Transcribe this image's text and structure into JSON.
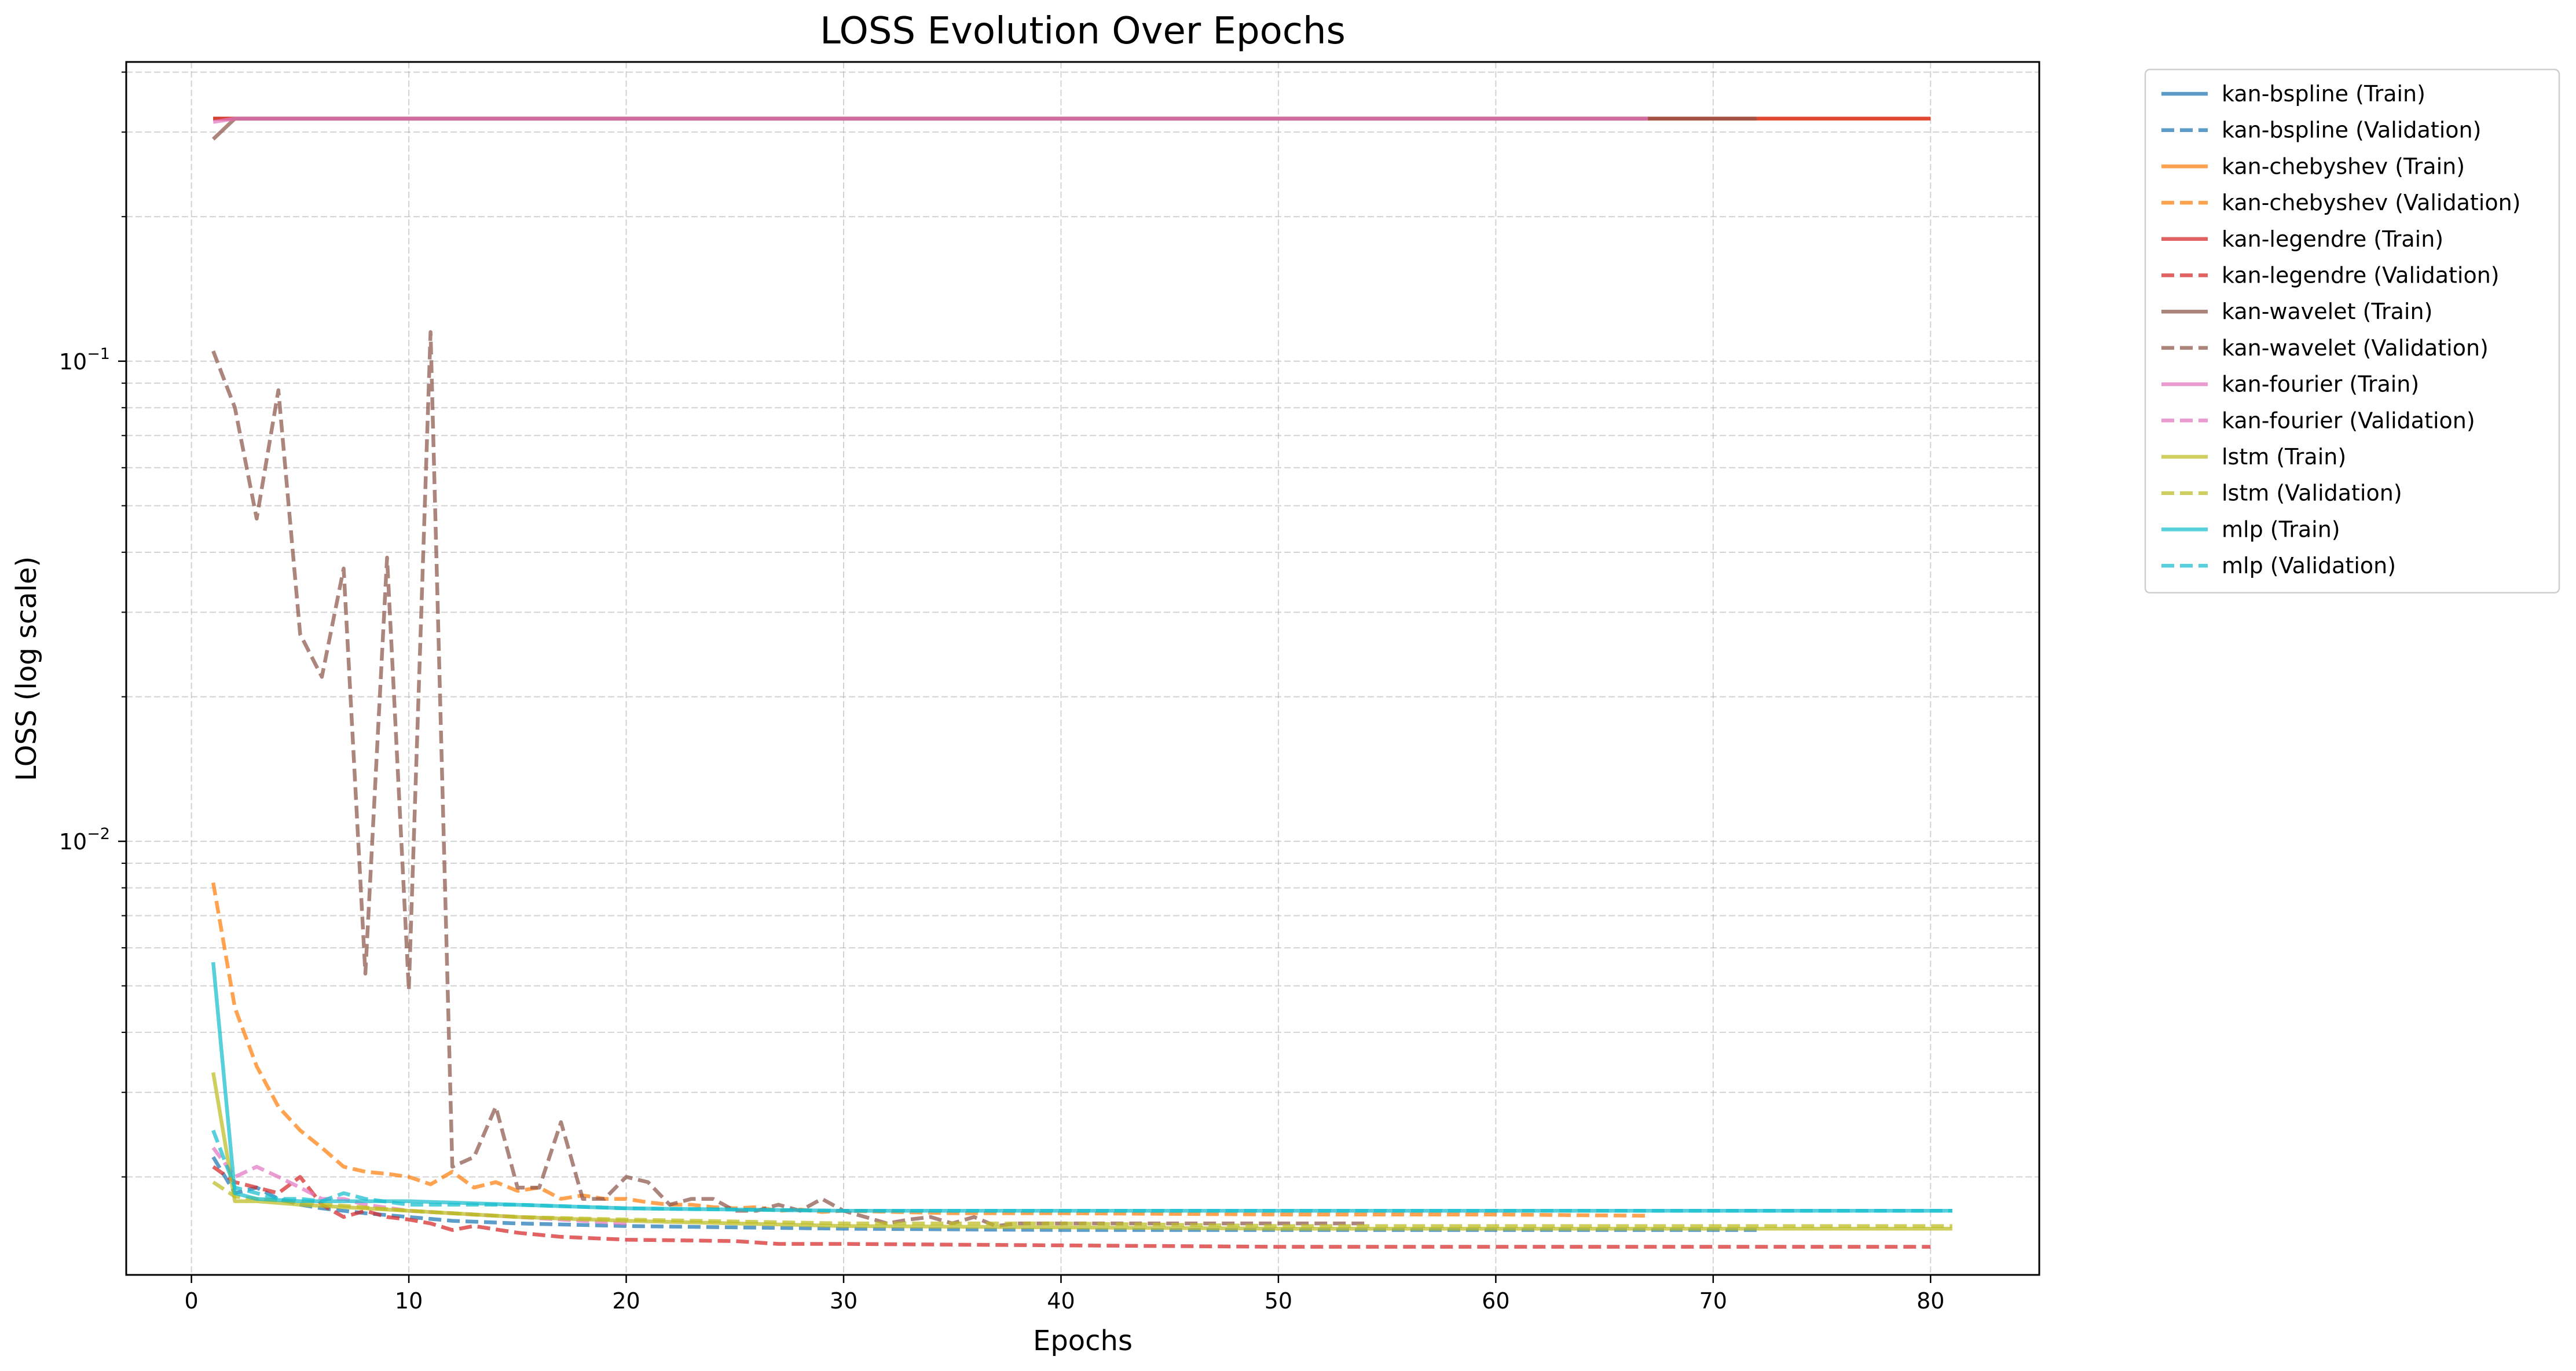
{
  "chart_data": {
    "type": "line",
    "title": "LOSS Evolution Over Epochs",
    "xlabel": "Epochs",
    "ylabel": "LOSS (log scale)",
    "yscale": "log",
    "xlim": [
      -3,
      85
    ],
    "ylim": [
      0.00125,
      0.42
    ],
    "xticks": [
      0,
      10,
      20,
      30,
      40,
      50,
      60,
      70,
      80
    ],
    "xtick_labels": [
      "0",
      "10",
      "20",
      "30",
      "40",
      "50",
      "60",
      "70",
      "80"
    ],
    "yticks": [
      0.01,
      0.1
    ],
    "ytick_labels": [
      {
        "base": "10",
        "exp": "−2"
      },
      {
        "base": "10",
        "exp": "−1"
      }
    ],
    "grid": true,
    "legend_position": "outside-right",
    "series": [
      {
        "name": "kan-bspline (Train)",
        "color": "#1f77b4",
        "dash": "solid",
        "x": [
          1,
          2,
          3,
          5,
          7,
          10,
          15,
          20,
          30,
          45,
          60,
          67
        ],
        "y": [
          0.32,
          0.32,
          0.32,
          0.32,
          0.32,
          0.32,
          0.32,
          0.32,
          0.32,
          0.32,
          0.32,
          0.32
        ]
      },
      {
        "name": "kan-bspline (Validation)",
        "color": "#1f77b4",
        "dash": "dashed",
        "x": [
          1,
          2,
          3,
          4,
          5,
          6,
          7,
          8,
          10,
          12,
          15,
          20,
          25,
          30,
          40,
          50,
          60,
          72
        ],
        "y": [
          0.0022,
          0.00185,
          0.0019,
          0.0018,
          0.00175,
          0.00172,
          0.0017,
          0.00168,
          0.00165,
          0.00162,
          0.0016,
          0.00158,
          0.00157,
          0.00156,
          0.00155,
          0.00155,
          0.00155,
          0.00155
        ]
      },
      {
        "name": "kan-chebyshev (Train)",
        "color": "#ff7f0e",
        "dash": "solid",
        "x": [
          1,
          2,
          3,
          5,
          10,
          20,
          40,
          60,
          80
        ],
        "y": [
          0.32,
          0.32,
          0.32,
          0.32,
          0.32,
          0.32,
          0.32,
          0.32,
          0.32
        ]
      },
      {
        "name": "kan-chebyshev (Validation)",
        "color": "#ff7f0e",
        "dash": "dashed",
        "x": [
          1,
          2,
          3,
          4,
          5,
          6,
          7,
          8,
          9,
          10,
          11,
          12,
          13,
          14,
          15,
          16,
          17,
          18,
          19,
          20,
          21,
          22,
          23,
          24,
          25,
          26,
          27,
          28,
          29,
          30,
          35,
          40,
          50,
          60,
          67
        ],
        "y": [
          0.0082,
          0.0045,
          0.0034,
          0.0028,
          0.0025,
          0.0023,
          0.0021,
          0.00205,
          0.00203,
          0.002,
          0.00193,
          0.00205,
          0.0019,
          0.00195,
          0.00187,
          0.0019,
          0.0018,
          0.00183,
          0.0018,
          0.0018,
          0.00177,
          0.00175,
          0.00175,
          0.00173,
          0.00172,
          0.00173,
          0.0017,
          0.00171,
          0.00169,
          0.0017,
          0.00168,
          0.00168,
          0.00167,
          0.00167,
          0.00166
        ]
      },
      {
        "name": "kan-legendre (Train)",
        "color": "#d62728",
        "dash": "solid",
        "x": [
          1,
          2,
          10,
          30,
          50,
          67,
          72,
          80
        ],
        "y": [
          0.32,
          0.32,
          0.32,
          0.32,
          0.32,
          0.32,
          0.32,
          0.32
        ]
      },
      {
        "name": "kan-legendre (Validation)",
        "color": "#d62728",
        "dash": "dashed",
        "x": [
          1,
          2,
          3,
          4,
          5,
          6,
          7,
          8,
          9,
          10,
          11,
          12,
          13,
          15,
          17,
          20,
          25,
          27,
          30,
          40,
          50,
          60,
          70,
          80
        ],
        "y": [
          0.0021,
          0.00195,
          0.0019,
          0.00185,
          0.002,
          0.00175,
          0.00165,
          0.0017,
          0.00165,
          0.00163,
          0.0016,
          0.00155,
          0.00158,
          0.00153,
          0.0015,
          0.00148,
          0.00147,
          0.00145,
          0.00145,
          0.00144,
          0.00143,
          0.00143,
          0.00143,
          0.00143
        ]
      },
      {
        "name": "kan-wavelet (Train)",
        "color": "#8c564b",
        "dash": "solid",
        "x": [
          1,
          2,
          3,
          10,
          30,
          50,
          60,
          67,
          72
        ],
        "y": [
          0.29,
          0.32,
          0.32,
          0.32,
          0.32,
          0.32,
          0.32,
          0.32,
          0.32
        ]
      },
      {
        "name": "kan-wavelet (Validation)",
        "color": "#8c564b",
        "dash": "dashed",
        "x": [
          1,
          2,
          3,
          4,
          5,
          6,
          7,
          8,
          9,
          10,
          11,
          12,
          13,
          14,
          15,
          16,
          17,
          18,
          19,
          20,
          21,
          22,
          23,
          24,
          25,
          26,
          27,
          28,
          29,
          30,
          31,
          32,
          33,
          34,
          35,
          36,
          37,
          38,
          40,
          45,
          50,
          54
        ],
        "y": [
          0.105,
          0.08,
          0.047,
          0.087,
          0.027,
          0.022,
          0.037,
          0.0053,
          0.039,
          0.0049,
          0.115,
          0.0021,
          0.0022,
          0.0028,
          0.0019,
          0.0019,
          0.0026,
          0.0018,
          0.0018,
          0.002,
          0.00195,
          0.00175,
          0.0018,
          0.0018,
          0.0017,
          0.0017,
          0.00175,
          0.0017,
          0.0018,
          0.0017,
          0.00165,
          0.0016,
          0.00163,
          0.00165,
          0.0016,
          0.00165,
          0.00158,
          0.0016,
          0.0016,
          0.0016,
          0.0016,
          0.0016
        ]
      },
      {
        "name": "kan-fourier (Train)",
        "color": "#e377c2",
        "dash": "solid",
        "x": [
          1,
          2,
          10,
          30,
          50,
          67
        ],
        "y": [
          0.315,
          0.32,
          0.32,
          0.32,
          0.32,
          0.32
        ]
      },
      {
        "name": "kan-fourier (Validation)",
        "color": "#e377c2",
        "dash": "dashed",
        "x": [
          1,
          2,
          3,
          4,
          5,
          6,
          7,
          8,
          10,
          15,
          20
        ],
        "y": [
          0.0023,
          0.002,
          0.0021,
          0.002,
          0.0019,
          0.0018,
          0.0018,
          0.00175,
          0.0017,
          0.00165,
          0.0016
        ]
      },
      {
        "name": "lstm (Train)",
        "color": "#bcbd22",
        "dash": "solid",
        "x": [
          1,
          2,
          3,
          5,
          10,
          15,
          20,
          30,
          40,
          50,
          60,
          70,
          81
        ],
        "y": [
          0.0033,
          0.00178,
          0.00178,
          0.00175,
          0.0017,
          0.00165,
          0.00162,
          0.00158,
          0.00157,
          0.00156,
          0.00156,
          0.00156,
          0.00156
        ]
      },
      {
        "name": "lstm (Validation)",
        "color": "#bcbd22",
        "dash": "dashed",
        "x": [
          1,
          2,
          3,
          5,
          10,
          15,
          20,
          30,
          40,
          50,
          60,
          70,
          81
        ],
        "y": [
          0.00195,
          0.00182,
          0.0018,
          0.00177,
          0.0017,
          0.00165,
          0.00163,
          0.0016,
          0.0016,
          0.00158,
          0.00158,
          0.00158,
          0.00158
        ]
      },
      {
        "name": "mlp (Train)",
        "color": "#17becf",
        "dash": "solid",
        "x": [
          1,
          2,
          3,
          5,
          10,
          20,
          30,
          40,
          50,
          60,
          70,
          81
        ],
        "y": [
          0.0056,
          0.00185,
          0.0018,
          0.00178,
          0.00178,
          0.00172,
          0.0017,
          0.0017,
          0.0017,
          0.0017,
          0.0017,
          0.0017
        ]
      },
      {
        "name": "mlp (Validation)",
        "color": "#17becf",
        "dash": "dashed",
        "x": [
          1,
          2,
          3,
          4,
          5,
          6,
          7,
          8,
          10,
          15,
          20,
          30,
          40,
          50,
          60,
          70,
          81
        ],
        "y": [
          0.0025,
          0.0019,
          0.00185,
          0.0018,
          0.0018,
          0.00178,
          0.00185,
          0.0018,
          0.00175,
          0.00175,
          0.00172,
          0.0017,
          0.0017,
          0.0017,
          0.0017,
          0.0017,
          0.0017
        ]
      }
    ]
  }
}
